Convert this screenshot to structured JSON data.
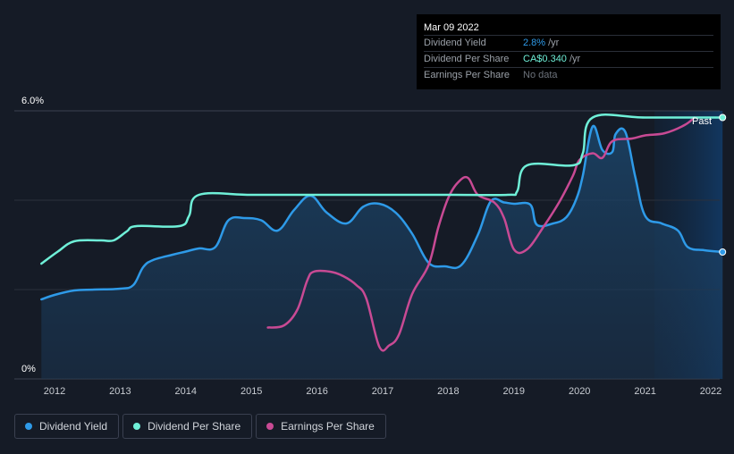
{
  "tooltip": {
    "date": "Mar 09 2022",
    "rows": [
      {
        "label": "Dividend Yield",
        "value": "2.8%",
        "unit": "/yr"
      },
      {
        "label": "Dividend Per Share",
        "value": "CA$0.340",
        "unit": "/yr"
      },
      {
        "label": "Earnings Per Share",
        "value": "No data",
        "unit": ""
      }
    ]
  },
  "legend": {
    "dividend_yield": "Dividend Yield",
    "dividend_per_share": "Dividend Per Share",
    "earnings_per_share": "Earnings Per Share"
  },
  "colors": {
    "dividend_yield": "#2e9ae8",
    "dividend_per_share": "#6ff0d8",
    "earnings_per_share": "#c84a94",
    "background": "#151b26"
  },
  "chart_data": {
    "type": "line",
    "ylim": [
      0,
      6
    ],
    "y_ticks": [
      "6.0%",
      "0%"
    ],
    "x_ticks": [
      "2012",
      "2013",
      "2014",
      "2015",
      "2016",
      "2017",
      "2018",
      "2019",
      "2020",
      "2021",
      "2022"
    ],
    "past_label": "Past",
    "x_range": [
      2011.8,
      2022.18
    ],
    "series": [
      {
        "name": "Dividend Yield",
        "key": "dividend_yield",
        "x": [
          2011.8,
          2012.0,
          2012.3,
          2012.6,
          2013.0,
          2013.2,
          2013.35,
          2013.5,
          2013.8,
          2014.0,
          2014.2,
          2014.45,
          2014.65,
          2014.9,
          2015.15,
          2015.4,
          2015.65,
          2015.9,
          2016.15,
          2016.45,
          2016.7,
          2016.95,
          2017.2,
          2017.45,
          2017.7,
          2017.95,
          2018.2,
          2018.45,
          2018.65,
          2018.85,
          2019.0,
          2019.25,
          2019.35,
          2019.6,
          2019.8,
          2019.95,
          2020.05,
          2020.2,
          2020.35,
          2020.5,
          2020.55,
          2020.7,
          2020.85,
          2021.0,
          2021.25,
          2021.5,
          2021.65,
          2021.9,
          2022.18
        ],
        "values": [
          1.78,
          1.88,
          1.98,
          2.0,
          2.02,
          2.1,
          2.5,
          2.66,
          2.78,
          2.85,
          2.92,
          2.95,
          3.55,
          3.6,
          3.55,
          3.32,
          3.78,
          4.1,
          3.72,
          3.48,
          3.85,
          3.92,
          3.72,
          3.25,
          2.6,
          2.52,
          2.55,
          3.22,
          3.98,
          3.95,
          3.92,
          3.9,
          3.45,
          3.48,
          3.62,
          4.02,
          4.55,
          5.65,
          5.12,
          5.08,
          5.48,
          5.52,
          4.52,
          3.65,
          3.48,
          3.32,
          2.95,
          2.88,
          2.84
        ]
      },
      {
        "name": "Dividend Per Share",
        "key": "dividend_per_share",
        "x": [
          2011.8,
          2012.05,
          2012.3,
          2012.7,
          2012.9,
          2013.1,
          2013.25,
          2013.9,
          2014.05,
          2014.2,
          2015.0,
          2016.0,
          2017.0,
          2018.0,
          2018.9,
          2019.05,
          2019.2,
          2019.9,
          2020.05,
          2020.2,
          2021.0,
          2022.18
        ],
        "values": [
          2.58,
          2.85,
          3.08,
          3.1,
          3.1,
          3.3,
          3.42,
          3.42,
          3.65,
          4.12,
          4.12,
          4.12,
          4.12,
          4.12,
          4.12,
          4.2,
          4.78,
          4.78,
          5.05,
          5.85,
          5.85,
          5.85
        ]
      },
      {
        "name": "Earnings Per Share",
        "key": "earnings_per_share",
        "x": [
          2015.25,
          2015.5,
          2015.7,
          2015.85,
          2015.95,
          2016.2,
          2016.4,
          2016.6,
          2016.75,
          2016.95,
          2017.1,
          2017.25,
          2017.45,
          2017.7,
          2017.85,
          2018.0,
          2018.15,
          2018.3,
          2018.45,
          2018.7,
          2018.85,
          2019.0,
          2019.2,
          2019.45,
          2019.7,
          2019.9,
          2020.0,
          2020.2,
          2020.35,
          2020.5,
          2020.8,
          2021.0,
          2021.3,
          2021.6,
          2021.75
        ],
        "values": [
          1.15,
          1.2,
          1.55,
          2.2,
          2.4,
          2.4,
          2.3,
          2.1,
          1.8,
          0.72,
          0.75,
          1.0,
          1.9,
          2.55,
          3.4,
          4.05,
          4.4,
          4.5,
          4.12,
          3.95,
          3.6,
          2.9,
          2.9,
          3.4,
          3.98,
          4.55,
          4.9,
          5.05,
          4.95,
          5.32,
          5.38,
          5.45,
          5.5,
          5.68,
          5.85
        ]
      }
    ]
  }
}
